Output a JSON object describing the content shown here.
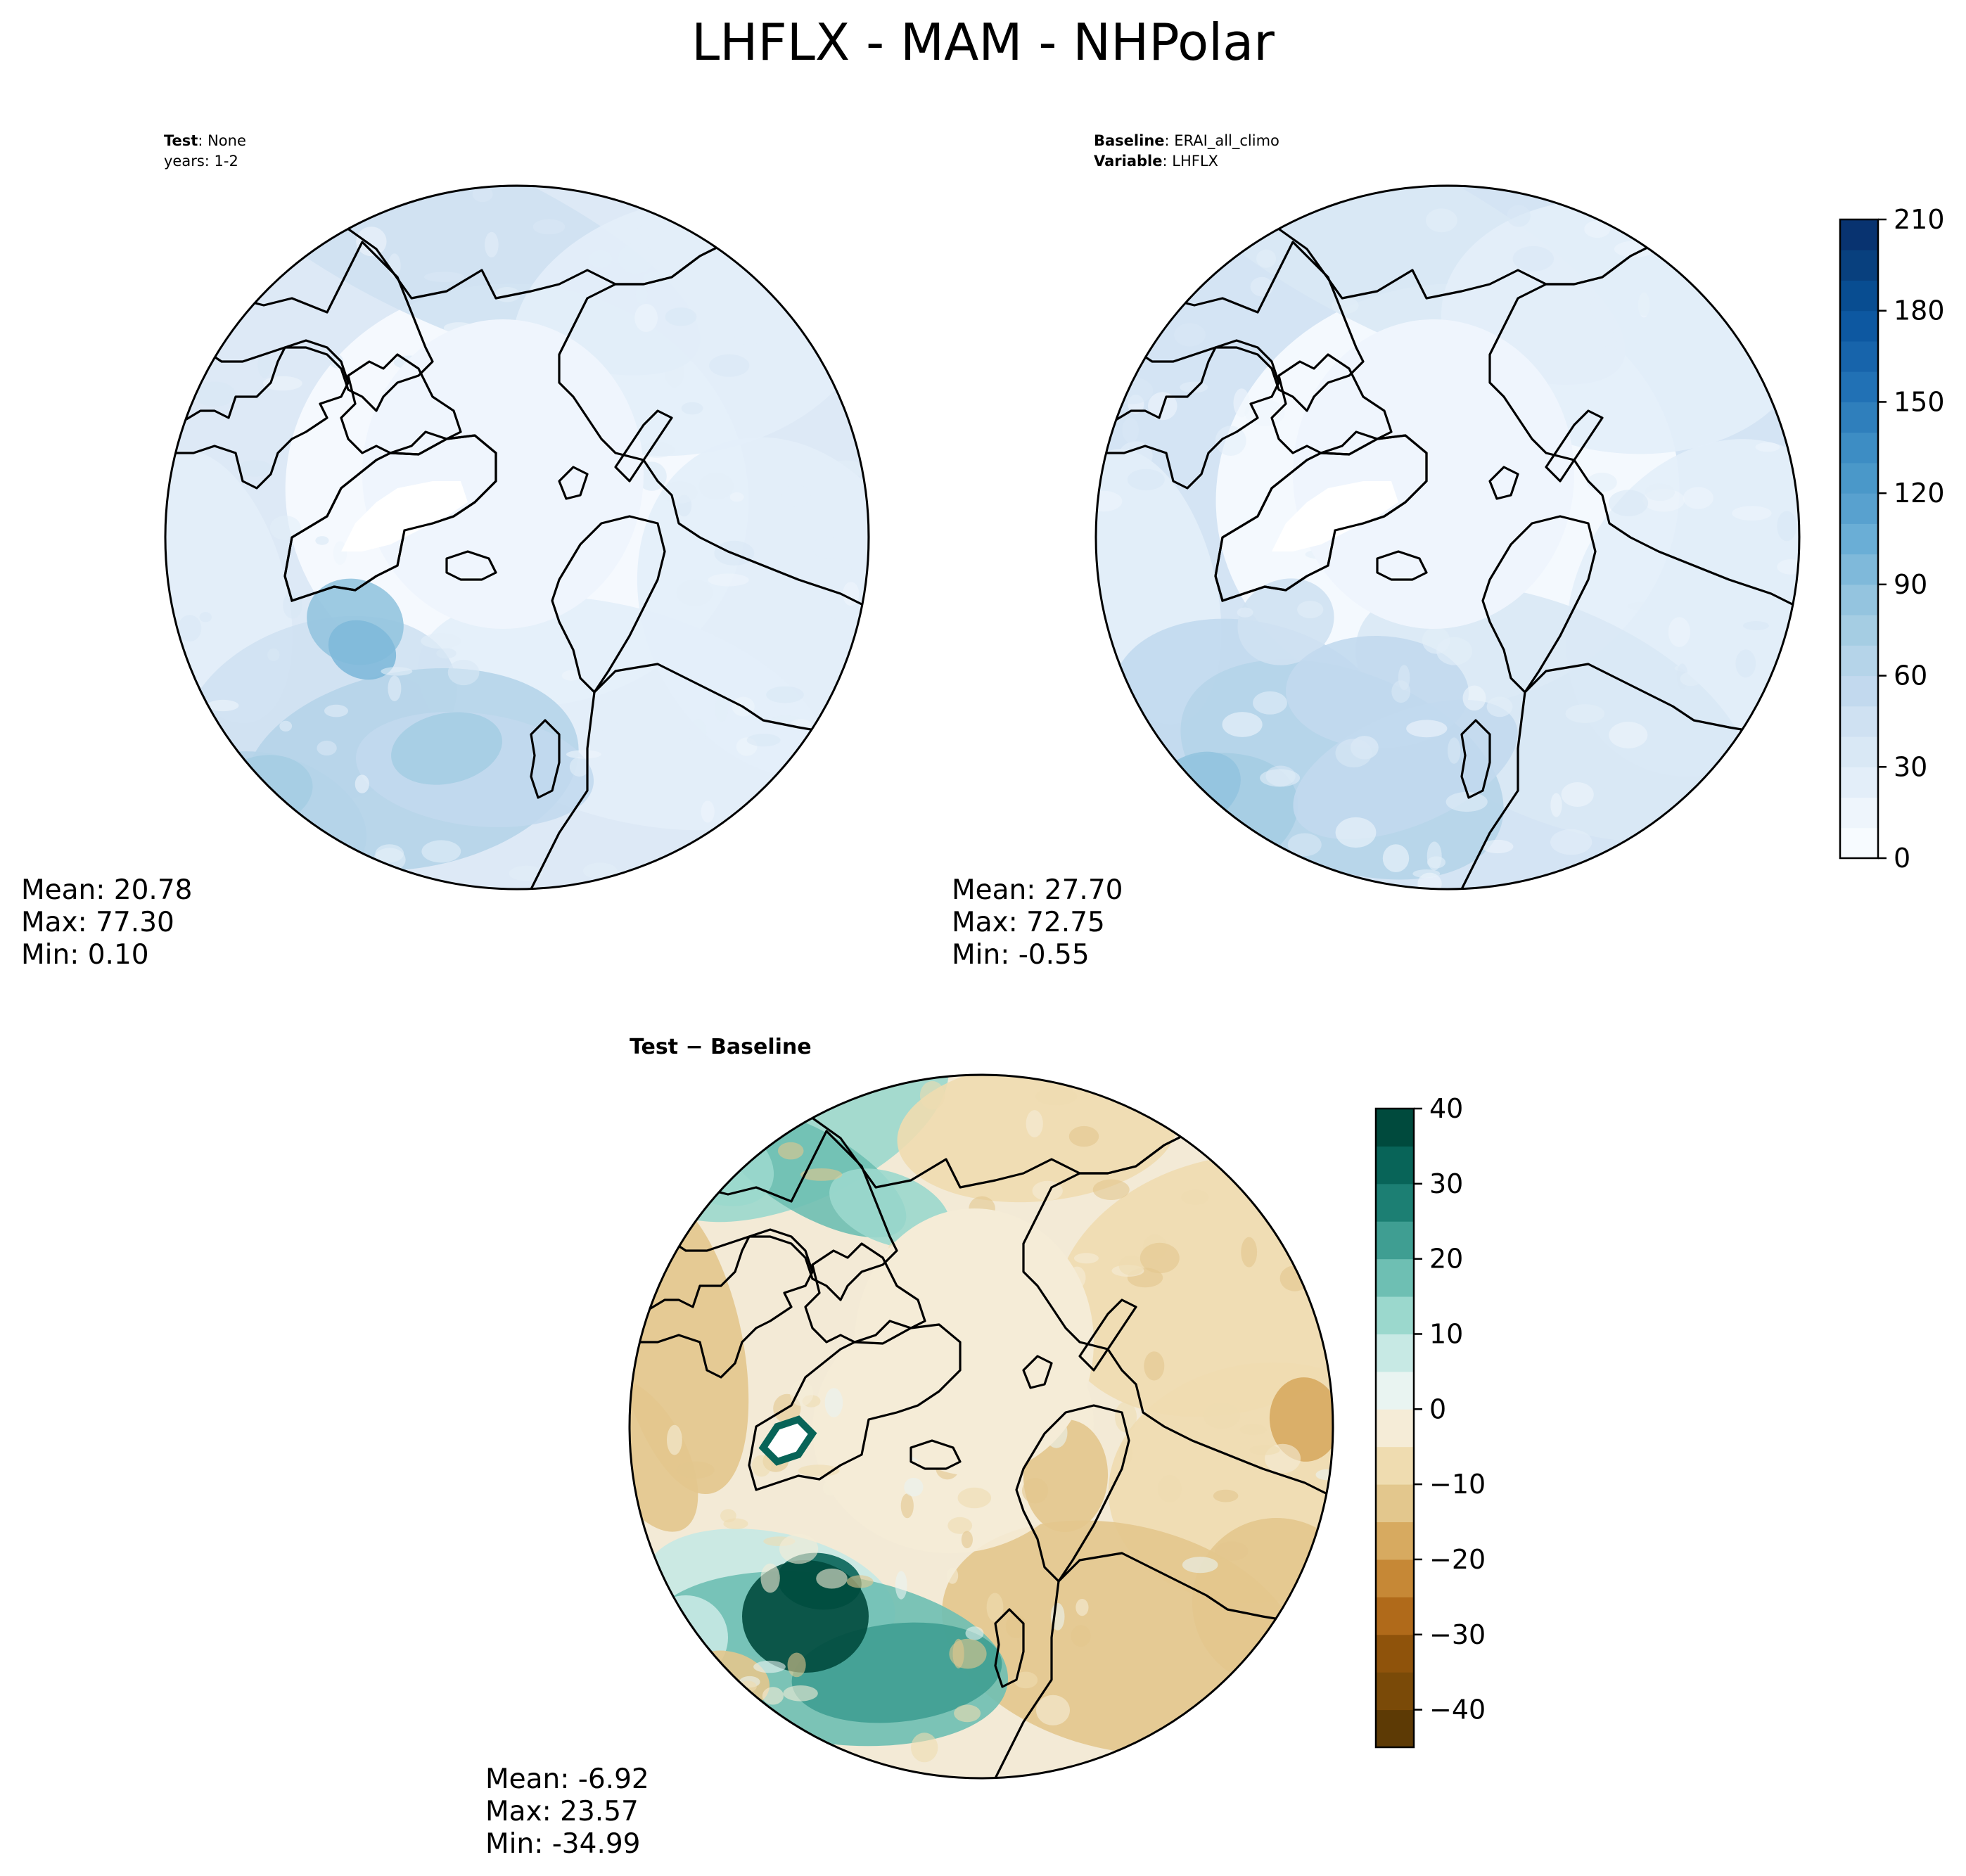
{
  "figure": {
    "title": "LHFLX - MAM - NHPolar"
  },
  "panels": [
    {
      "id": "test",
      "header_lines": [
        {
          "key": "Test",
          "value": "None"
        },
        {
          "key": "",
          "value": "years: 1-2"
        }
      ],
      "stats": {
        "mean": "Mean: 20.78",
        "max": "Max: 77.30",
        "min": "Min:  0.10"
      }
    },
    {
      "id": "baseline",
      "header_lines": [
        {
          "key": "Baseline",
          "value": "ERAI_all_climo"
        },
        {
          "key": "Variable",
          "value": "LHFLX"
        }
      ],
      "stats": {
        "mean": "Mean: 27.70",
        "max": "Max: 72.75",
        "min": "Min: -0.55"
      }
    },
    {
      "id": "difference",
      "title": "Test − Baseline",
      "stats": {
        "mean": "Mean: -6.92",
        "max": "Max: 23.57",
        "min": "Min: -34.99"
      }
    }
  ],
  "chart_data": [
    {
      "type": "heatmap",
      "projection": "north-polar-stereographic",
      "panel": "test",
      "colormap": "Blues",
      "levels": [
        0,
        10,
        20,
        30,
        40,
        50,
        60,
        70,
        80,
        90,
        100,
        110,
        120,
        130,
        140,
        150,
        160,
        170,
        180,
        190,
        200,
        210
      ],
      "colorbar_ticks": [
        "0",
        "30",
        "60",
        "90",
        "120",
        "150",
        "180",
        "210"
      ],
      "summary": {
        "mean": 20.78,
        "max": 77.3,
        "min": 0.1
      }
    },
    {
      "type": "heatmap",
      "projection": "north-polar-stereographic",
      "panel": "baseline",
      "colormap": "Blues",
      "levels": [
        0,
        10,
        20,
        30,
        40,
        50,
        60,
        70,
        80,
        90,
        100,
        110,
        120,
        130,
        140,
        150,
        160,
        170,
        180,
        190,
        200,
        210
      ],
      "colorbar_ticks": [
        "0",
        "30",
        "60",
        "90",
        "120",
        "150",
        "180",
        "210"
      ],
      "summary": {
        "mean": 27.7,
        "max": 72.75,
        "min": -0.55
      }
    },
    {
      "type": "heatmap",
      "projection": "north-polar-stereographic",
      "panel": "difference",
      "colormap": "BrBG",
      "levels": [
        -45,
        -40,
        -35,
        -30,
        -25,
        -20,
        -15,
        -10,
        -5,
        0,
        5,
        10,
        15,
        20,
        25,
        30,
        35,
        40
      ],
      "colorbar_ticks": [
        "−40",
        "−30",
        "−20",
        "−10",
        "0",
        "10",
        "20",
        "30",
        "40"
      ],
      "summary": {
        "mean": -6.92,
        "max": 23.57,
        "min": -34.99
      }
    }
  ],
  "colors": {
    "blues": [
      "#f7fbff",
      "#eef5fc",
      "#e3eef9",
      "#d9e8f5",
      "#cfe1f2",
      "#c2d9ee",
      "#b5d4e9",
      "#a5cde3",
      "#94c4df",
      "#7fb9da",
      "#6aaed6",
      "#58a1cf",
      "#4a98c9",
      "#3d8dc4",
      "#2f7fbc",
      "#2171b5",
      "#1764ab",
      "#0d58a1",
      "#084d91",
      "#08407e",
      "#083370"
    ],
    "brbg": [
      "#5d3a05",
      "#7a4a08",
      "#8f530b",
      "#b06a1a",
      "#c68836",
      "#d7aa60",
      "#e3c78d",
      "#efdcb0",
      "#f5ecd7",
      "#e9f4f1",
      "#c7e9e4",
      "#9bd8cd",
      "#6ebfb3",
      "#3f9e92",
      "#1c7f73",
      "#086458",
      "#004a3d"
    ],
    "ocean_test": "#dde9f6",
    "ocean_base": "#d4e4f4",
    "ocean_diff": "#f3ead6",
    "ice": "#eff5fd",
    "coast": "#000000"
  }
}
